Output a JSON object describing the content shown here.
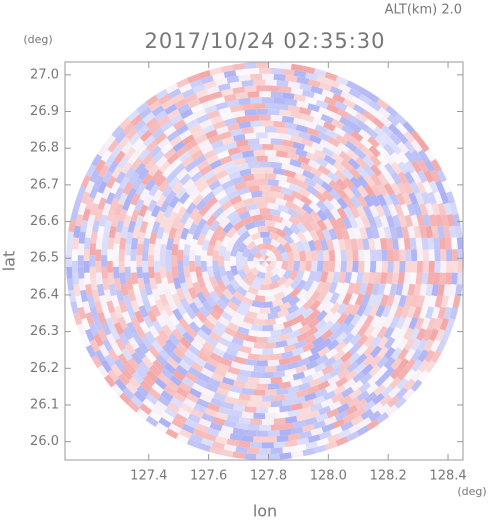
{
  "chart_data": {
    "type": "radar-ppi",
    "title": "2017/10/24 02:35:30",
    "altitude_label": "ALT(km)  2.0",
    "x_label": "lon",
    "x_unit": "(deg)",
    "y_label": "lat",
    "y_unit": "(deg)",
    "xlim": [
      127.12,
      128.45
    ],
    "ylim": [
      25.95,
      27.035
    ],
    "xticks": [
      127.4,
      127.6,
      127.8,
      {
        "value": 128,
        "label": "128.0"
      },
      128.2,
      128.4
    ],
    "yticks": [
      {
        "value": 26,
        "label": "26.0"
      },
      26.1,
      26.2,
      26.3,
      26.4,
      26.5,
      26.6,
      26.7,
      26.8,
      26.9,
      {
        "value": 27,
        "label": "27.0"
      }
    ],
    "colors": [
      "#f4a6a6",
      "#aab0f4"
    ]
  }
}
